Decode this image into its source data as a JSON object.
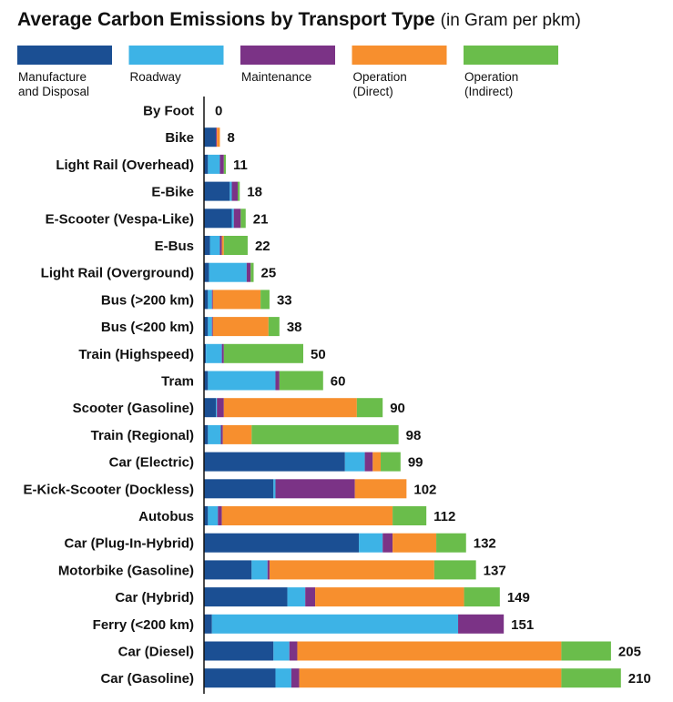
{
  "chart_data": {
    "type": "bar",
    "orientation": "horizontal",
    "stacked": true,
    "title": "Average Carbon Emissions by Transport Type",
    "subtitle": "(in Gram per pkm)",
    "series": [
      {
        "name": "Manufacture\nand Disposal",
        "color": "#1b4f93"
      },
      {
        "name": "Roadway",
        "color": "#3db3e6"
      },
      {
        "name": "Maintenance",
        "color": "#7b3386"
      },
      {
        "name": "Operation\n(Direct)",
        "color": "#f78f2e"
      },
      {
        "name": "Operation\n(Indirect)",
        "color": "#6abd4b"
      }
    ],
    "categories": [
      "By Foot",
      "Bike",
      "Light Rail (Overhead)",
      "E-Bike",
      "E-Scooter (Vespa-Like)",
      "E-Bus",
      "Light Rail (Overground)",
      "Bus (>200 km)",
      "Bus (<200 km)",
      "Train (Highspeed)",
      "Tram",
      "Scooter (Gasoline)",
      "Train (Regional)",
      "Car (Electric)",
      "E-Kick-Scooter (Dockless)",
      "Autobus",
      "Car (Plug-In-Hybrid)",
      "Motorbike (Gasoline)",
      "Car (Hybrid)",
      "Ferry (<200 km)",
      "Car (Diesel)",
      "Car (Gasoline)"
    ],
    "totals": [
      0,
      8,
      11,
      18,
      21,
      22,
      25,
      33,
      38,
      50,
      60,
      90,
      98,
      99,
      102,
      112,
      132,
      137,
      149,
      151,
      205,
      210
    ],
    "segments": [
      [
        0,
        0,
        0,
        0,
        0
      ],
      [
        6,
        0,
        0.5,
        1.5,
        0
      ],
      [
        2,
        6,
        2,
        0,
        1
      ],
      [
        13,
        1,
        3,
        0,
        1
      ],
      [
        14,
        1,
        3.5,
        0,
        2.5
      ],
      [
        3,
        5,
        1,
        1,
        12
      ],
      [
        2.5,
        19,
        2,
        0,
        1.5
      ],
      [
        2,
        2,
        0.5,
        24,
        4.5
      ],
      [
        2,
        2,
        0.5,
        28,
        5.5
      ],
      [
        1,
        8,
        1,
        0,
        40
      ],
      [
        2,
        34,
        2,
        0,
        22
      ],
      [
        6,
        0.5,
        3.5,
        67,
        13
      ],
      [
        2,
        6.5,
        1,
        14.5,
        74
      ],
      [
        71,
        10,
        4,
        4,
        10
      ],
      [
        35,
        1,
        40,
        26,
        0
      ],
      [
        2,
        5,
        2,
        86,
        17
      ],
      [
        78,
        12,
        5,
        22,
        15
      ],
      [
        24,
        8,
        1,
        83,
        21
      ],
      [
        42,
        9,
        5,
        75,
        18
      ],
      [
        4,
        124,
        23,
        0,
        0
      ],
      [
        35,
        8,
        4,
        133,
        25
      ],
      [
        36,
        8,
        4,
        132,
        30
      ]
    ]
  }
}
